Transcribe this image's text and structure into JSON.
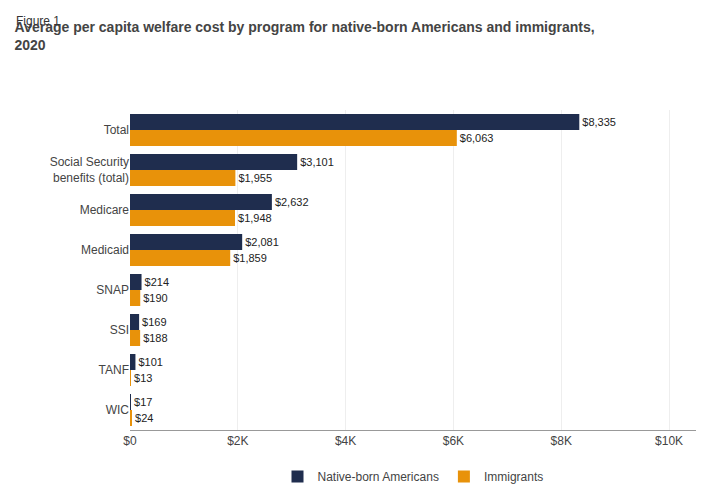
{
  "chart_data": {
    "type": "bar",
    "orientation": "horizontal",
    "title": "Average per capita welfare cost by program for native-born Americans and immigrants,\n2020",
    "annotations": [
      "Figure 1"
    ],
    "categories": [
      "Total",
      "Social Security\nbenefits (total)",
      "Medicare",
      "Medicaid",
      "SNAP",
      "SSI",
      "TANF",
      "WIC"
    ],
    "series": [
      {
        "name": "Native-born Americans",
        "color": "#1f2d4e",
        "values": [
          8335,
          3101,
          2632,
          2081,
          214,
          169,
          101,
          17
        ],
        "value_labels": [
          "$8,335",
          "$3,101",
          "$2,632",
          "$2,081",
          "$214",
          "$169",
          "$101",
          "$17"
        ]
      },
      {
        "name": "Immigrants",
        "color": "#e8920a",
        "values": [
          6063,
          1955,
          1948,
          1859,
          190,
          188,
          13,
          24
        ],
        "value_labels": [
          "$6,063",
          "$1,955",
          "$1,948",
          "$1,859",
          "$190",
          "$188",
          "$13",
          "$24"
        ]
      }
    ],
    "xlim": [
      0,
      10500
    ],
    "xticks": [
      {
        "value": 0,
        "label": "$0"
      },
      {
        "value": 2000,
        "label": "$2K"
      },
      {
        "value": 4000,
        "label": "$4K"
      },
      {
        "value": 6000,
        "label": "$6K"
      },
      {
        "value": 8000,
        "label": "$8K"
      },
      {
        "value": 10000,
        "label": "$10K"
      }
    ],
    "grid": true,
    "data_labels": true,
    "legend": "bottom"
  }
}
